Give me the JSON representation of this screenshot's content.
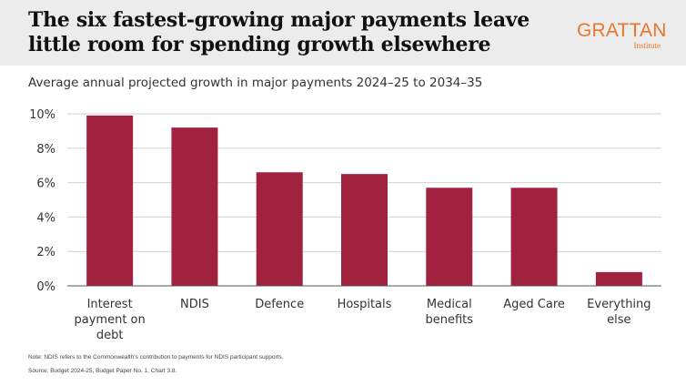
{
  "header": {
    "title": "The six fastest-growing major payments leave little room for spending growth elsewhere",
    "logo_word": "GRATTAN",
    "logo_sub": "Institute"
  },
  "subtitle": "Average annual projected growth in major payments 2024–25 to 2034–35",
  "footer": {
    "note": "Note: NDIS refers to the Commonwealth's contribution to payments for NDIS participant supports.",
    "source": "Source: Budget 2024-25, Budget Paper No. 1, Chart 3.8."
  },
  "colors": {
    "bar": "#a0223f",
    "grid": "#d0d0d0",
    "axis": "#555555",
    "logo": "#e8772e",
    "header_bg": "#ececec"
  },
  "chart_data": {
    "type": "bar",
    "title": "Average annual projected growth in major payments 2024–25 to 2034–35",
    "xlabel": "",
    "ylabel": "",
    "categories": [
      [
        "Interest",
        "payment on",
        "debt"
      ],
      [
        "NDIS"
      ],
      [
        "Defence"
      ],
      [
        "Hospitals"
      ],
      [
        "Medical",
        "benefits"
      ],
      [
        "Aged Care"
      ],
      [
        "Everything",
        "else"
      ]
    ],
    "values": [
      9.9,
      9.2,
      6.6,
      6.5,
      5.7,
      5.7,
      0.8
    ],
    "ylim": [
      0,
      10
    ],
    "yticks": [
      0,
      2,
      4,
      6,
      8,
      10
    ],
    "ytick_labels": [
      "0%",
      "2%",
      "4%",
      "6%",
      "8%",
      "10%"
    ],
    "grid": true,
    "legend": "none"
  }
}
